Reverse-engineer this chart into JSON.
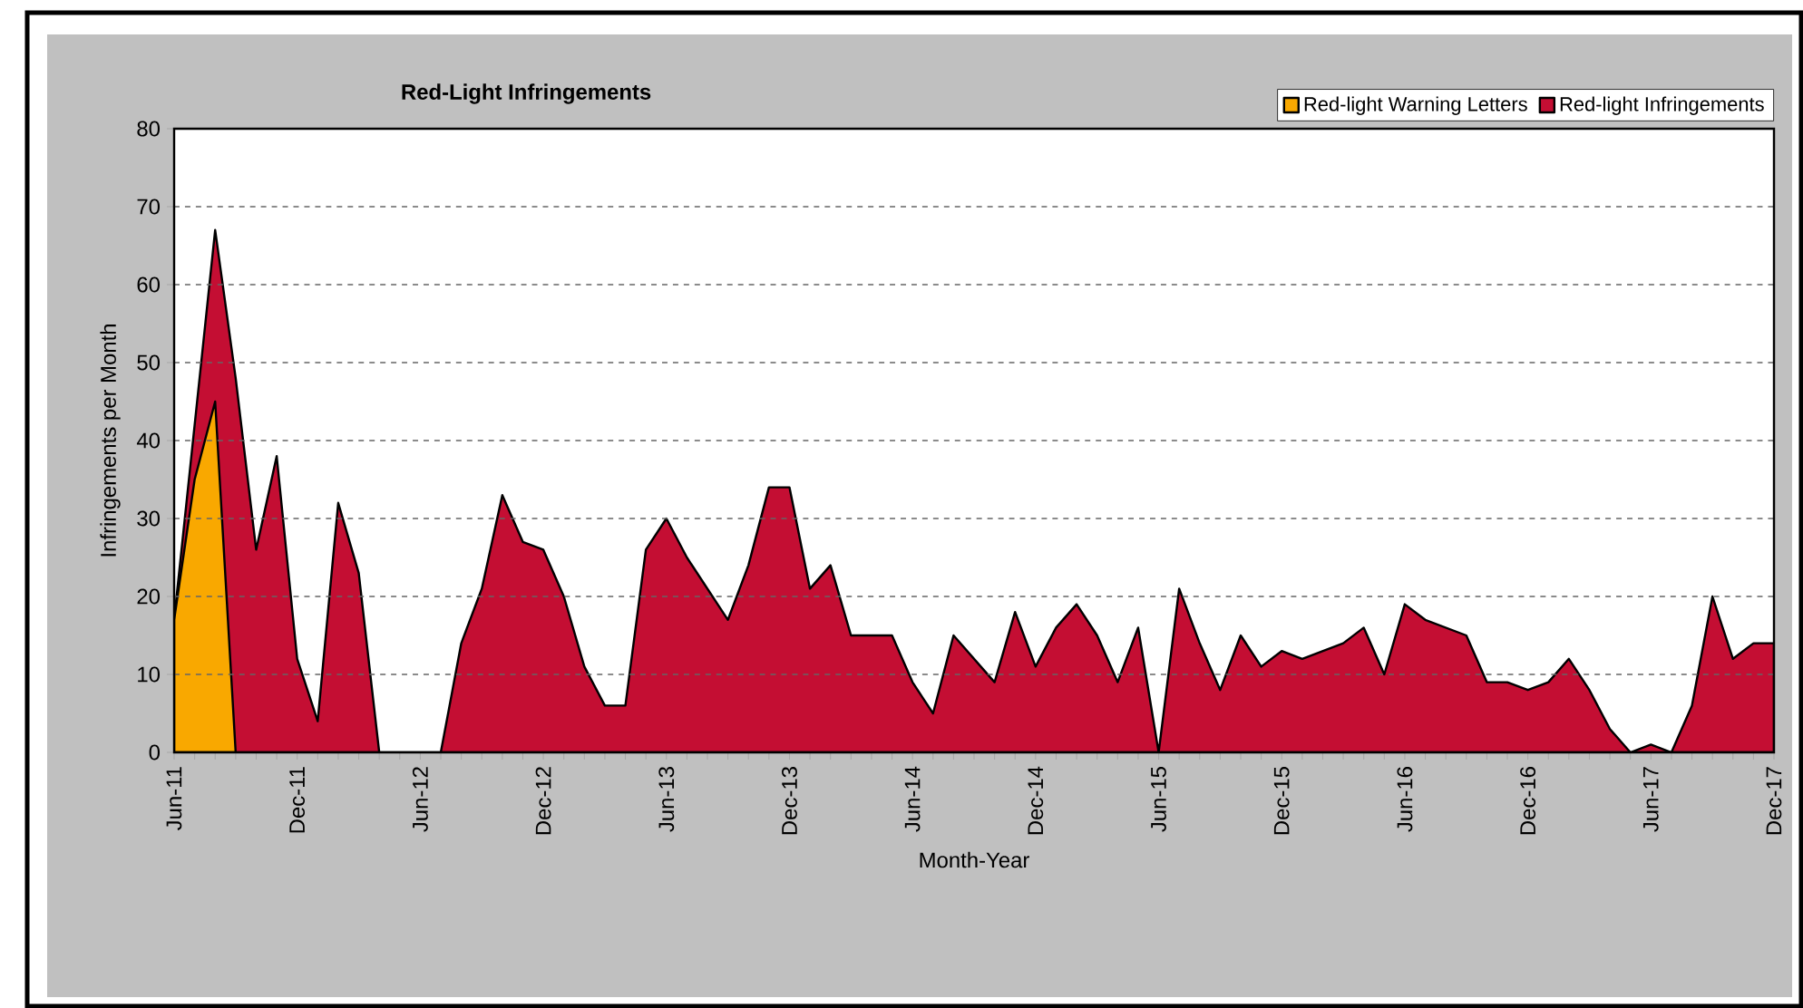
{
  "chart_data": {
    "type": "area",
    "title": "Red-Light Infringements",
    "xlabel": "Month-Year",
    "ylabel": "Infringements per Month",
    "categories": [
      "Jun-11",
      null,
      null,
      null,
      null,
      null,
      "Dec-11",
      null,
      null,
      null,
      null,
      null,
      "Jun-12",
      null,
      null,
      null,
      null,
      null,
      "Dec-12",
      null,
      null,
      null,
      null,
      null,
      "Jun-13",
      null,
      null,
      null,
      null,
      null,
      "Dec-13",
      null,
      null,
      null,
      null,
      null,
      "Jun-14",
      null,
      null,
      null,
      null,
      null,
      "Dec-14",
      null,
      null,
      null,
      null,
      null,
      "Jun-15",
      null,
      null,
      null,
      null,
      null,
      "Dec-15",
      null,
      null,
      null,
      null,
      null,
      "Jun-16",
      null,
      null,
      null,
      null,
      null,
      "Dec-16",
      null,
      null,
      null,
      null,
      null,
      "Jun-17",
      null,
      null,
      null,
      null,
      null,
      "Dec-17"
    ],
    "series": [
      {
        "name": "Red-light Warning Letters",
        "color": "#f9a800",
        "values": [
          17,
          35,
          45,
          0,
          null,
          null,
          null,
          null,
          null,
          null,
          null,
          null,
          null,
          null,
          null,
          null,
          null,
          null,
          null,
          null,
          null,
          null,
          null,
          null,
          null,
          null,
          null,
          null,
          null,
          null,
          null,
          null,
          null,
          null,
          null,
          null,
          null,
          null,
          null,
          null,
          null,
          null,
          null,
          null,
          null,
          null,
          null,
          null,
          null,
          null,
          null,
          null,
          null,
          null,
          null,
          null,
          null,
          null,
          null,
          null,
          null,
          null,
          null,
          null,
          null,
          null,
          null,
          null,
          null,
          null,
          null,
          null,
          null,
          null,
          null,
          null,
          null,
          null,
          null
        ]
      },
      {
        "name": "Red-light Infringements",
        "color": "#c40e33",
        "values": [
          17,
          42,
          67,
          48,
          26,
          38,
          12,
          4,
          32,
          23,
          0,
          0,
          0,
          0,
          14,
          21,
          33,
          27,
          26,
          20,
          11,
          6,
          6,
          26,
          30,
          25,
          21,
          17,
          24,
          34,
          34,
          21,
          24,
          15,
          15,
          15,
          9,
          5,
          15,
          12,
          9,
          18,
          11,
          16,
          19,
          15,
          9,
          16,
          0,
          21,
          14,
          8,
          15,
          11,
          13,
          12,
          13,
          14,
          16,
          10,
          19,
          17,
          16,
          15,
          9,
          9,
          8,
          9,
          12,
          8,
          3,
          0,
          1,
          0,
          6,
          20,
          12,
          14,
          14
        ]
      }
    ],
    "ylim": [
      0,
      80
    ],
    "yticks": [
      0,
      10,
      20,
      30,
      40,
      50,
      60,
      70,
      80
    ],
    "grid": "y",
    "legend": "top right"
  }
}
